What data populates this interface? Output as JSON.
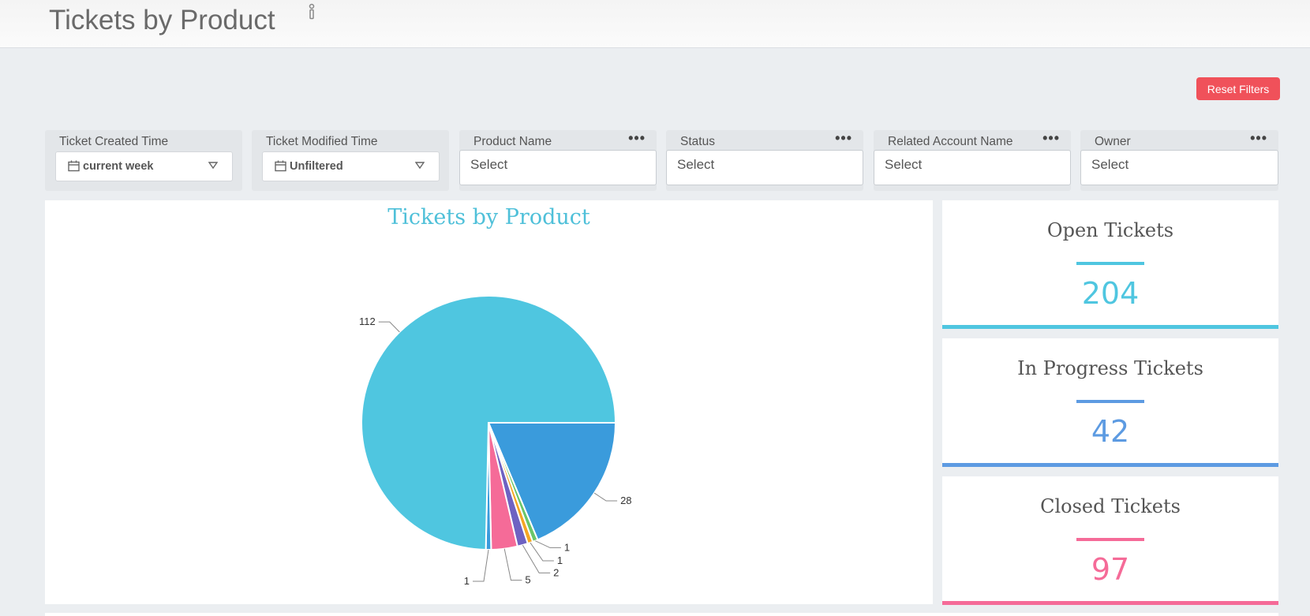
{
  "header": {
    "title": "Tickets by Product"
  },
  "toolbar": {
    "reset_label": "Reset Filters"
  },
  "filters": [
    {
      "label": "Ticket Created Time",
      "value": "current week"
    },
    {
      "label": "Ticket Modified Time",
      "value": "Unfiltered"
    },
    {
      "label": "Product Name",
      "menu": "•••",
      "placeholder": "Select"
    },
    {
      "label": "Status",
      "menu": "•••",
      "placeholder": "Select"
    },
    {
      "label": "Related Account Name",
      "menu": "•••",
      "placeholder": "Select"
    },
    {
      "label": "Owner",
      "menu": "•••",
      "placeholder": "Select"
    }
  ],
  "chart_data": {
    "type": "pie",
    "title": "Tickets by Product",
    "slices": [
      {
        "value": 28,
        "color": "#3a9bdc"
      },
      {
        "value": 1,
        "color": "#6ac66a"
      },
      {
        "value": 1,
        "color": "#f5a623"
      },
      {
        "value": 2,
        "color": "#6e62c2"
      },
      {
        "value": 5,
        "color": "#f56b98"
      },
      {
        "value": 1,
        "color": "#3a9bdc"
      },
      {
        "value": 112,
        "color": "#4fc6e0"
      }
    ]
  },
  "kpis": [
    {
      "title": "Open Tickets",
      "value": "204",
      "color": "#4fc6e0"
    },
    {
      "title": "In Progress Tickets",
      "value": "42",
      "color": "#5d9be2"
    },
    {
      "title": "Closed Tickets",
      "value": "97",
      "color": "#f56b98"
    }
  ]
}
